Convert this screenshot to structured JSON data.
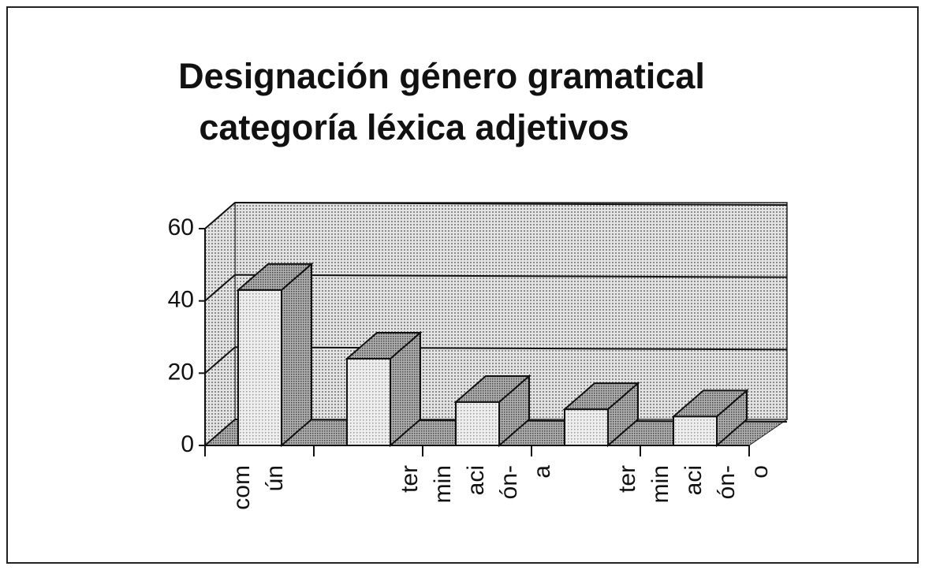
{
  "chart_data": {
    "type": "bar3d",
    "title": [
      "Designación género gramatical",
      "categoría léxica adjetivos"
    ],
    "categories": [
      "común",
      null,
      "terminación-a",
      null,
      "terminación-o"
    ],
    "values": [
      43,
      24,
      12,
      10,
      8
    ],
    "ylim": [
      0,
      60
    ],
    "yticks": [
      0,
      20,
      40,
      60
    ],
    "grid": true
  }
}
